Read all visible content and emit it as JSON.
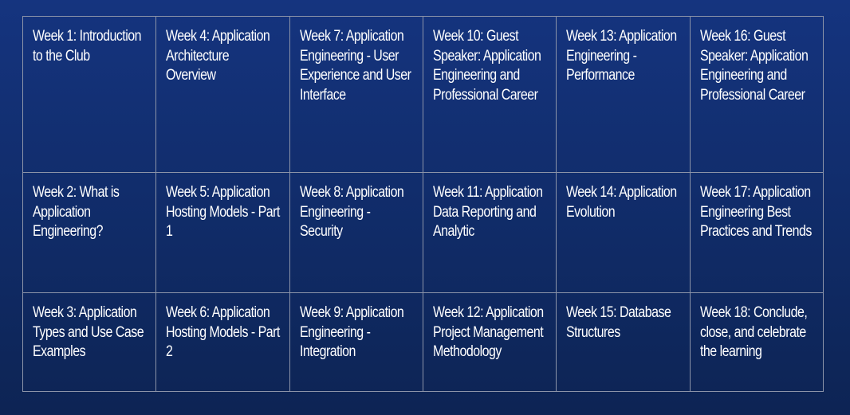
{
  "schedule": {
    "rows": [
      [
        "Week 1: Introduction to the Club",
        "Week 4: Application Architecture Overview",
        "Week 7: Application Engineering - User Experience and User Interface",
        "Week 10: Guest Speaker: Application Engineering and Professional Career",
        "Week 13: Application Engineering - Performance",
        "Week 16: Guest Speaker: Application Engineering and Professional Career"
      ],
      [
        "Week 2: What is Application Engineering?",
        "Week 5: Application Hosting Models - Part 1",
        "Week 8: Application Engineering - Security",
        "Week 11: Application Data Reporting and Analytic",
        "Week 14: Application Evolution",
        "Week 17: Application Engineering Best Practices and Trends"
      ],
      [
        "Week 3: Application Types and Use Case Examples",
        "Week 6: Application Hosting Models - Part 2",
        "Week 9: Application Engineering - Integration",
        "Week 12: Application Project Management Methodology",
        "Week 15: Database Structures",
        "Week 18: Conclude, close, and celebrate the learning"
      ]
    ]
  }
}
